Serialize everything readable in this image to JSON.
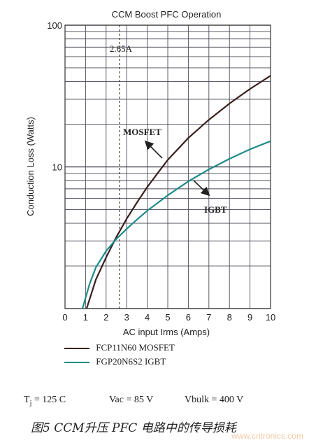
{
  "chart_data": {
    "type": "line",
    "title": "CCM Boost PFC Operation",
    "xlabel": "AC input Irms (Amps)",
    "ylabel": "Conduction Loss (Watts)",
    "xlim": [
      0,
      10
    ],
    "ylim": [
      1,
      100
    ],
    "y_scale": "log",
    "x_ticks": [
      "0",
      "1",
      "2",
      "3",
      "4",
      "5",
      "6",
      "7",
      "8",
      "9",
      "10"
    ],
    "y_tick_labels": [
      "100",
      "10"
    ],
    "grid": true,
    "series": [
      {
        "name": "FCP11N60 MOSFET",
        "label": "MOSFET",
        "color": "#3b1f1f",
        "x": [
          1.05,
          1.5,
          2.0,
          2.5,
          3.0,
          3.5,
          4.0,
          4.5,
          5.0,
          6.0,
          7.0,
          8.0,
          9.0,
          10.0
        ],
        "y": [
          1.0,
          1.6,
          2.3,
          3.2,
          4.3,
          5.6,
          7.2,
          9.0,
          11.2,
          16.0,
          21.5,
          28.0,
          35.5,
          44.0
        ]
      },
      {
        "name": "FGP20N6S2 IGBT",
        "label": "IGBT",
        "color": "#1e8a8a",
        "x": [
          0.85,
          1.2,
          1.5,
          2.0,
          2.5,
          3.0,
          3.5,
          4.0,
          4.5,
          5.0,
          6.0,
          7.0,
          8.0,
          9.0,
          10.0
        ],
        "y": [
          1.0,
          1.5,
          1.95,
          2.55,
          3.1,
          3.65,
          4.25,
          4.9,
          5.55,
          6.3,
          7.9,
          9.6,
          11.4,
          13.3,
          15.2
        ]
      }
    ],
    "annotations": [
      {
        "text": "2.65A",
        "x": 2.65
      }
    ]
  },
  "conditions": {
    "tj": "T",
    "tj_sub": "j",
    "tj_value": " = 125 C",
    "vac": "Vac = 85 V",
    "vbulk": "Vbulk = 400 V"
  },
  "caption": "图5   CCM升压 PFC 电路中的传导损耗",
  "watermark": "www.cntronics.com"
}
